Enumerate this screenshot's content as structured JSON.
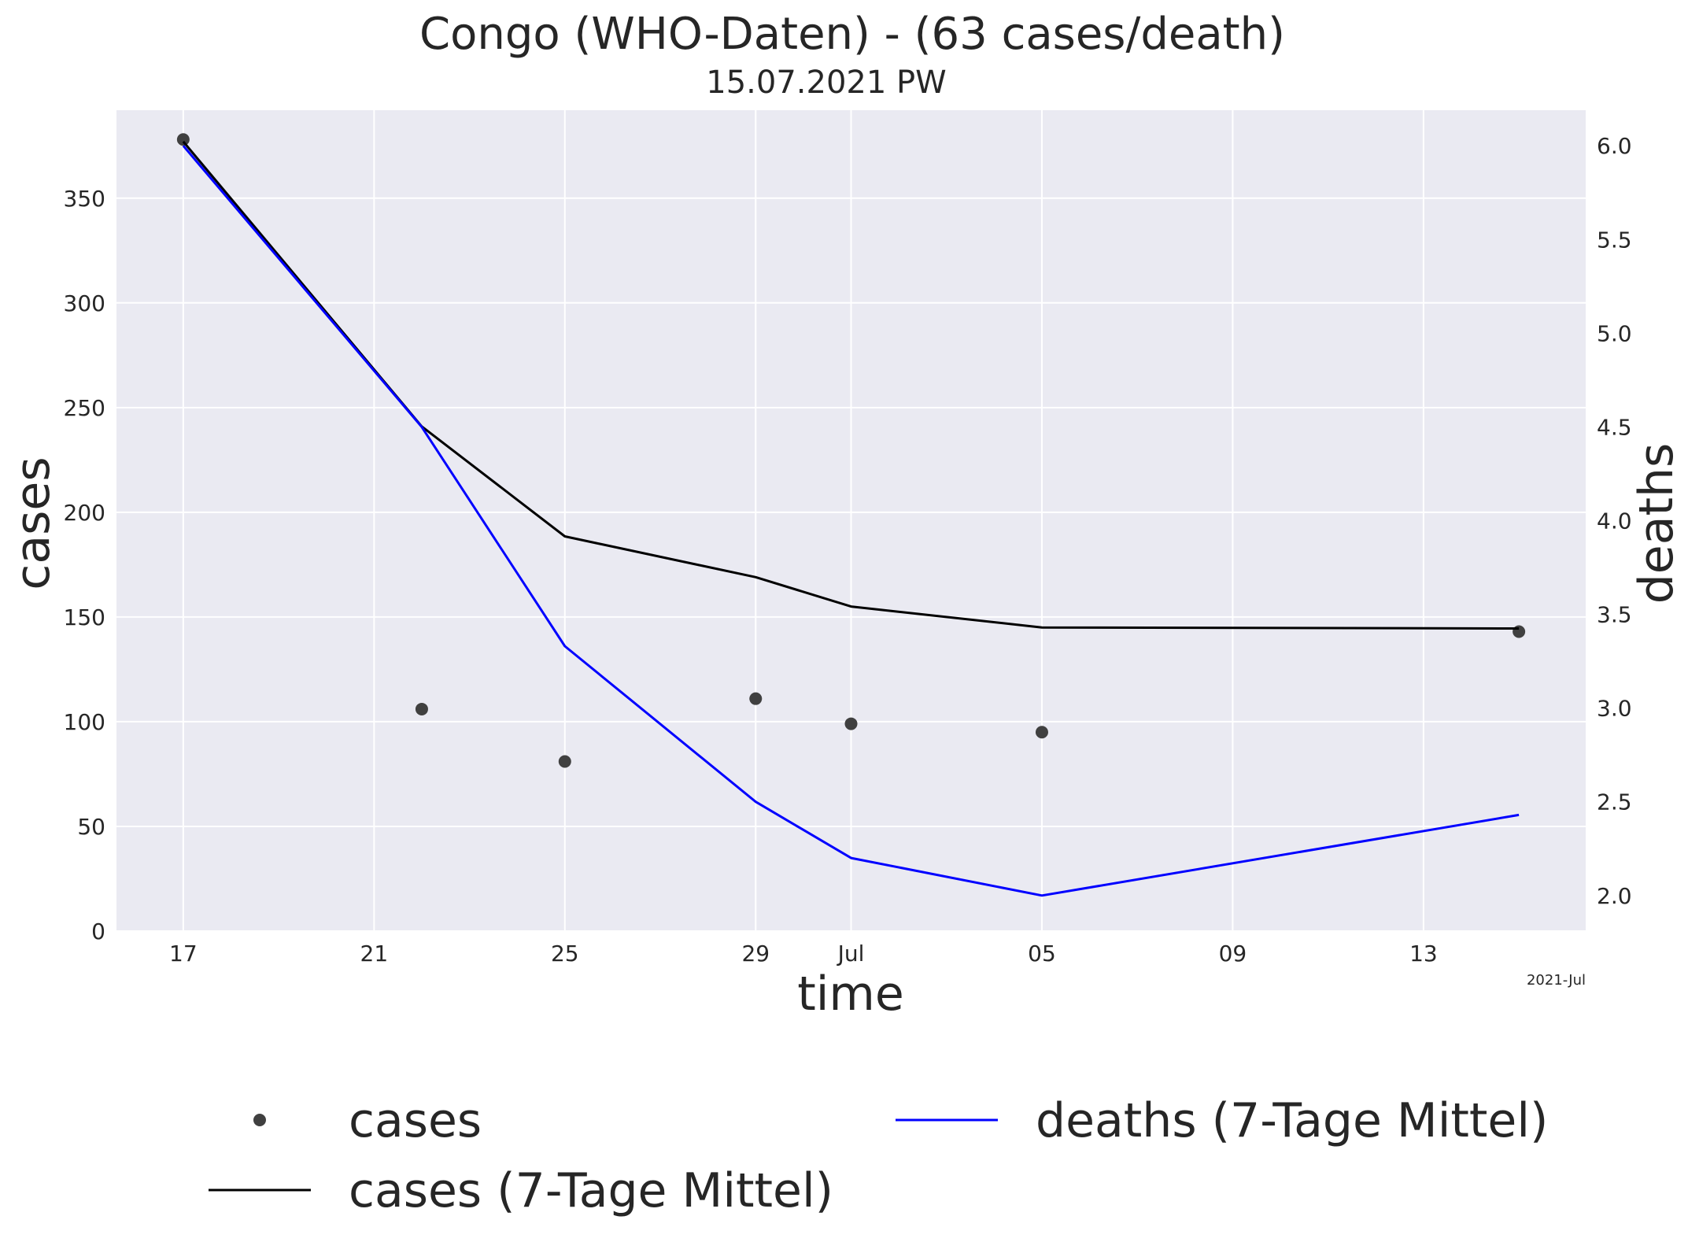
{
  "chart_data": {
    "type": "line",
    "title": "Congo (WHO-Daten) - (63 cases/death)",
    "subtitle": "15.07.2021 PW",
    "xlabel": "time",
    "ylabel": "cases",
    "y2label": "deaths",
    "x_offset_label": "2021-Jul",
    "x_ticks": [
      "17",
      "21",
      "25",
      "29",
      "Jul",
      "05",
      "09",
      "13"
    ],
    "x_tick_dates": [
      "2021-06-17",
      "2021-06-21",
      "2021-06-25",
      "2021-06-29",
      "2021-07-01",
      "2021-07-05",
      "2021-07-09",
      "2021-07-13"
    ],
    "xlim": [
      "2021-06-15.6",
      "2021-07-16.4"
    ],
    "ylim": [
      0,
      392
    ],
    "y_ticks": [
      0,
      50,
      100,
      150,
      200,
      250,
      300,
      350
    ],
    "y2lim": [
      1.81,
      6.19
    ],
    "y2_ticks": [
      "2.0",
      "2.5",
      "3.0",
      "3.5",
      "4.0",
      "4.5",
      "5.0",
      "5.5",
      "6.0"
    ],
    "grid": true,
    "legend_position": "bottom",
    "colors": {
      "cases": "#404040",
      "cases_avg": "#000000",
      "deaths_avg": "#0000ff",
      "plot_bg": "#eaeaf2",
      "grid": "#ffffff",
      "deaths_label": "#0000ff"
    },
    "series": [
      {
        "name": "cases",
        "style": "scatter",
        "axis": "left",
        "x": [
          "2021-06-17",
          "2021-06-22",
          "2021-06-25",
          "2021-06-29",
          "2021-07-01",
          "2021-07-05",
          "2021-07-15"
        ],
        "values": [
          378,
          106,
          81,
          111,
          99,
          95,
          143
        ]
      },
      {
        "name": "cases (7-Tage Mittel)",
        "style": "line",
        "axis": "left",
        "x": [
          "2021-06-17",
          "2021-06-22",
          "2021-06-25",
          "2021-06-29",
          "2021-07-01",
          "2021-07-05",
          "2021-07-15"
        ],
        "values": [
          377,
          241,
          188.5,
          169,
          155,
          145,
          144.5
        ]
      },
      {
        "name": "deaths (7-Tage Mittel)",
        "style": "line",
        "axis": "right",
        "x": [
          "2021-06-17",
          "2021-06-22",
          "2021-06-25",
          "2021-06-29",
          "2021-07-01",
          "2021-07-05",
          "2021-07-15"
        ],
        "values": [
          6.0,
          4.5,
          3.33,
          2.5,
          2.2,
          2.0,
          2.43
        ]
      }
    ]
  }
}
